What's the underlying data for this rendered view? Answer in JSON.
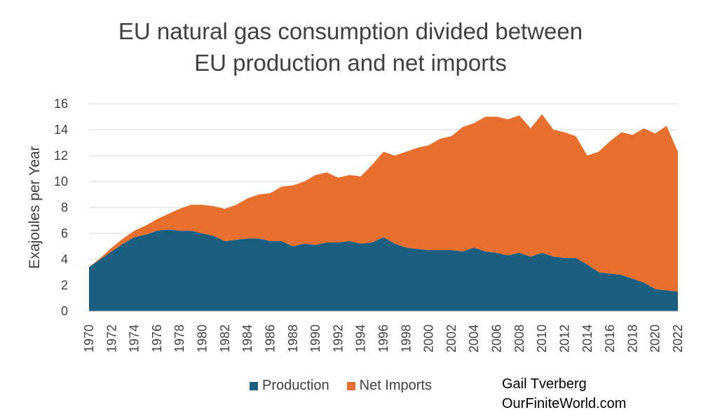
{
  "chart_data": {
    "type": "area",
    "stacked": true,
    "title_line1": "EU natural gas consumption divided between",
    "title_line2": "EU production and net imports",
    "xlabel": "",
    "ylabel": "Exajoules per Year",
    "ylim": [
      0,
      16
    ],
    "yticks": [
      0,
      2,
      4,
      6,
      8,
      10,
      12,
      14,
      16
    ],
    "grid": true,
    "legend_position": "bottom",
    "x": [
      1970,
      1971,
      1972,
      1973,
      1974,
      1975,
      1976,
      1977,
      1978,
      1979,
      1980,
      1981,
      1982,
      1983,
      1984,
      1985,
      1986,
      1987,
      1988,
      1989,
      1990,
      1991,
      1992,
      1993,
      1994,
      1995,
      1996,
      1997,
      1998,
      1999,
      2000,
      2001,
      2002,
      2003,
      2004,
      2005,
      2006,
      2007,
      2008,
      2009,
      2010,
      2011,
      2012,
      2013,
      2014,
      2015,
      2016,
      2017,
      2018,
      2019,
      2020,
      2021,
      2022
    ],
    "xticks": [
      "1970",
      "1972",
      "1974",
      "1976",
      "1978",
      "1980",
      "1982",
      "1984",
      "1986",
      "1988",
      "1990",
      "1992",
      "1994",
      "1996",
      "1998",
      "2000",
      "2002",
      "2004",
      "2006",
      "2008",
      "2010",
      "2012",
      "2014",
      "2016",
      "2018",
      "2020",
      "2022"
    ],
    "series": [
      {
        "name": "Production",
        "color": "#1a5e80",
        "values": [
          3.4,
          4.0,
          4.6,
          5.2,
          5.7,
          5.9,
          6.2,
          6.3,
          6.2,
          6.2,
          6.0,
          5.8,
          5.4,
          5.5,
          5.6,
          5.6,
          5.4,
          5.4,
          5.0,
          5.2,
          5.1,
          5.3,
          5.3,
          5.4,
          5.2,
          5.3,
          5.7,
          5.2,
          4.9,
          4.8,
          4.7,
          4.7,
          4.7,
          4.6,
          4.9,
          4.6,
          4.5,
          4.3,
          4.5,
          4.2,
          4.5,
          4.2,
          4.1,
          4.1,
          3.6,
          3.0,
          2.9,
          2.8,
          2.5,
          2.2,
          1.7,
          1.6,
          1.5
        ]
      },
      {
        "name": "Net Imports",
        "color": "#e8702e",
        "values": [
          0.0,
          0.1,
          0.3,
          0.4,
          0.5,
          0.7,
          0.9,
          1.2,
          1.7,
          2.0,
          2.2,
          2.3,
          2.5,
          2.7,
          3.1,
          3.4,
          3.7,
          4.2,
          4.7,
          4.8,
          5.4,
          5.4,
          5.0,
          5.1,
          5.2,
          6.0,
          6.6,
          6.8,
          7.4,
          7.8,
          8.1,
          8.6,
          8.8,
          9.6,
          9.6,
          10.4,
          10.5,
          10.5,
          10.6,
          9.9,
          10.7,
          9.8,
          9.7,
          9.4,
          8.4,
          9.3,
          10.2,
          11.0,
          11.1,
          11.9,
          12.0,
          12.7,
          10.8
        ]
      }
    ]
  },
  "credit": {
    "line1": "Gail Tverberg",
    "line2": "OurFiniteWorld.com"
  }
}
